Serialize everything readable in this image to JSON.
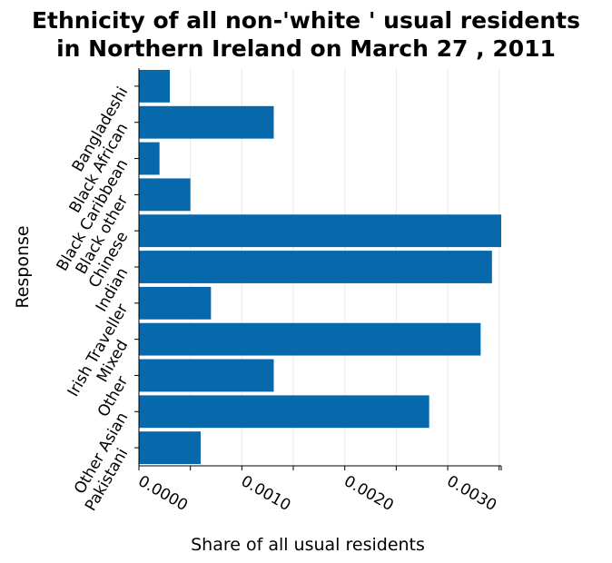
{
  "chart_data": {
    "type": "bar",
    "orientation": "horizontal",
    "title_lines": [
      "Ethnicity of all non-'white ' usual residents",
      "in Northern Ireland on March 27 , 2011"
    ],
    "xlabel": "Share of all usual residents",
    "ylabel": "Response",
    "categories": [
      "Bangladeshi",
      "Black African",
      "Black Caribbean",
      "Black other",
      "Chinese",
      "Indian",
      "Irish Traveller",
      "Mixed",
      "Other",
      "Other Asian",
      "Pakistani"
    ],
    "values": [
      0.0003,
      0.00131,
      0.0002,
      0.0005,
      0.00352,
      0.00343,
      0.0007,
      0.00332,
      0.00131,
      0.00282,
      0.0006
    ],
    "xlim": [
      0,
      0.00352
    ],
    "x_ticks": [
      0,
      0.001,
      0.002,
      0.003
    ],
    "x_tick_labels": [
      "0.0000",
      "0.0010",
      "0.0020",
      "0.0030"
    ],
    "grid": "vertical",
    "bar_color": "#0868ac"
  }
}
